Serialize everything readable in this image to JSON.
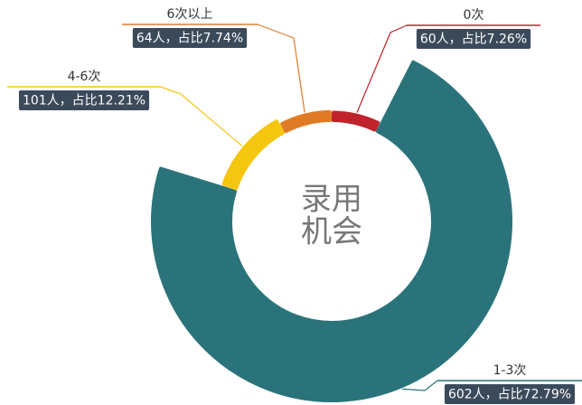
{
  "chart_data": {
    "type": "pie",
    "donut": true,
    "rose": "radius",
    "center_text": [
      "录用",
      "机会"
    ],
    "categories": [
      "0次",
      "1-3次",
      "4-6次",
      "6次以上"
    ],
    "values": [
      60,
      602,
      101,
      64
    ],
    "value_labels": [
      "60人，占比7.26%",
      "602人，占比72.79%",
      "101人，占比12.21%",
      "64人，占比7.74%"
    ],
    "colors": [
      "#c0232b",
      "#2a737a",
      "#f5c60f",
      "#e07b25"
    ]
  }
}
